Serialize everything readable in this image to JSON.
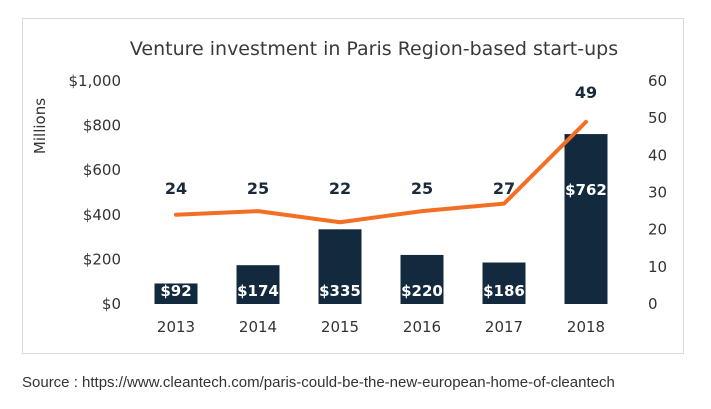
{
  "chart_data": {
    "type": "bar",
    "title": "Venture investment in Paris Region-based start-ups",
    "ylabel": "Millions",
    "categories": [
      "2013",
      "2014",
      "2015",
      "2016",
      "2017",
      "2018"
    ],
    "series": [
      {
        "chart": "bar",
        "axis": "left",
        "values": [
          92,
          174,
          335,
          220,
          186,
          762
        ],
        "labels": [
          "$92",
          "$174",
          "$335",
          "$220",
          "$186",
          "$762"
        ],
        "color": "#13293d"
      },
      {
        "chart": "line",
        "axis": "right",
        "values": [
          24,
          25,
          22,
          25,
          27,
          49
        ],
        "labels": [
          "24",
          "25",
          "22",
          "25",
          "27",
          "49"
        ],
        "color": "#f26f24"
      }
    ],
    "y_left": {
      "lim": [
        0,
        1000
      ],
      "ticks": [
        0,
        200,
        400,
        600,
        800,
        1000
      ],
      "tick_labels": [
        "$0",
        "$200",
        "$400",
        "$600",
        "$800",
        "$1,000"
      ]
    },
    "y_right": {
      "lim": [
        0,
        60
      ],
      "ticks": [
        0,
        10,
        20,
        30,
        40,
        50,
        60
      ],
      "tick_labels": [
        "0",
        "10",
        "20",
        "30",
        "40",
        "50",
        "60"
      ]
    },
    "grid": false,
    "legend": "none"
  },
  "source": "Source : https://www.cleantech.com/paris-could-be-the-new-european-home-of-cleantech"
}
